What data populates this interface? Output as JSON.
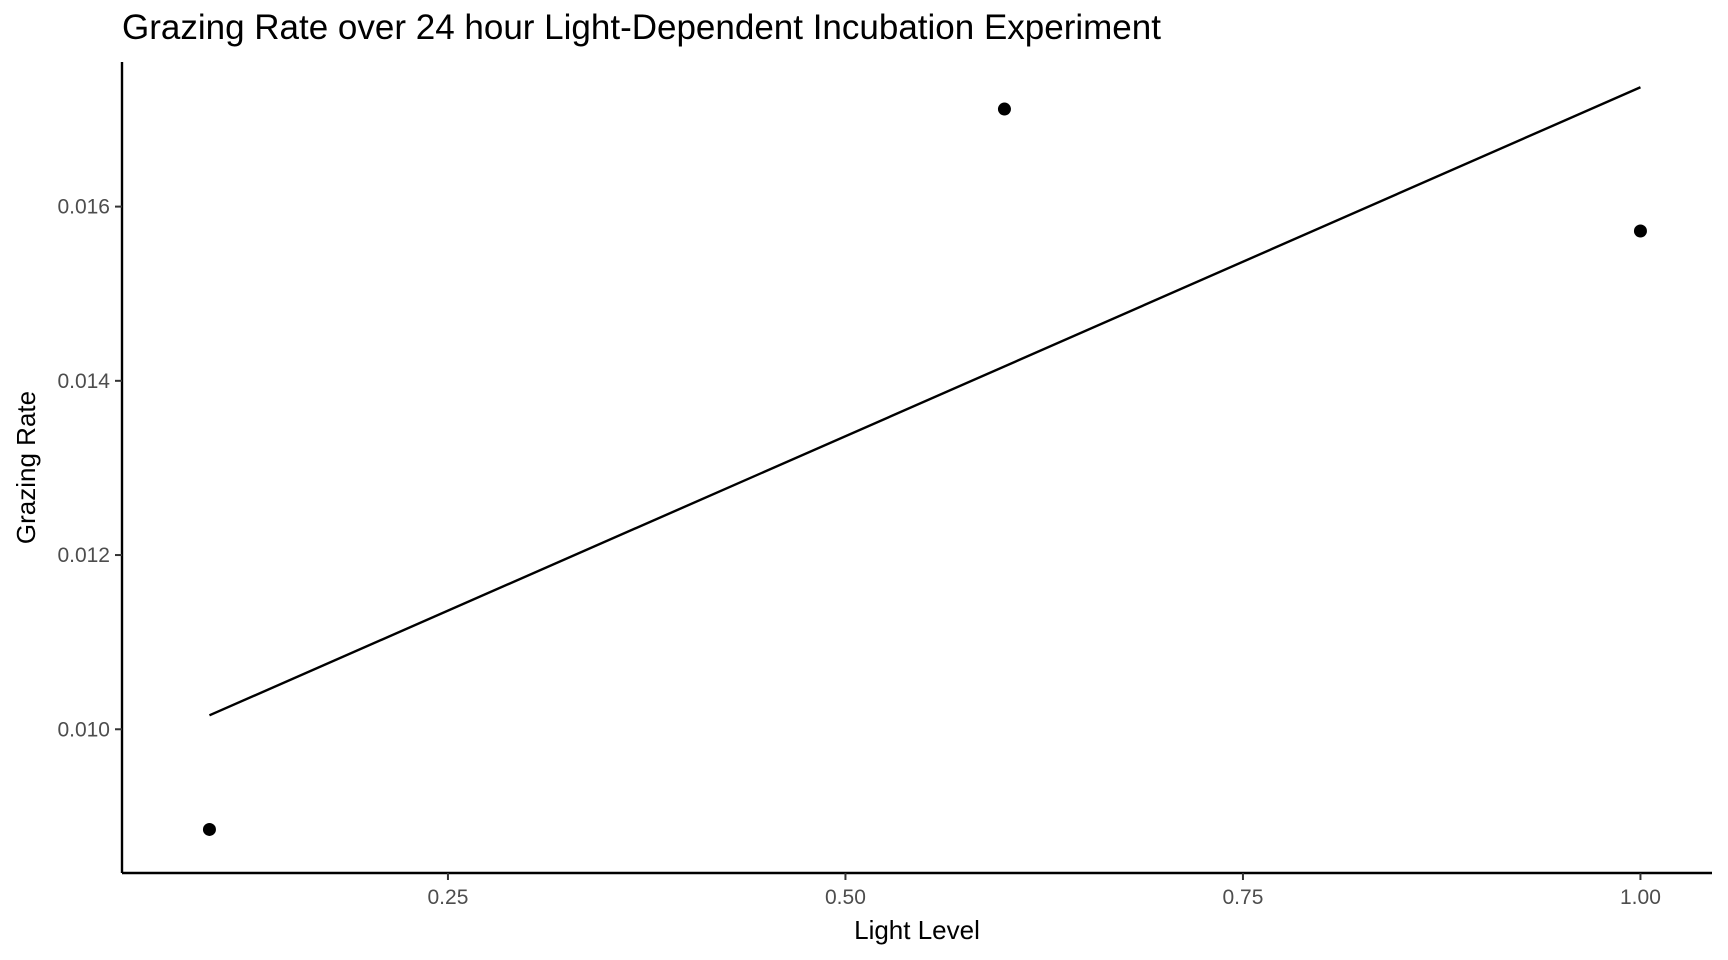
{
  "chart_data": {
    "type": "scatter",
    "title": "Grazing Rate over 24 hour Light-Dependent Incubation Experiment",
    "xlabel": "Light Level",
    "ylabel": "Grazing Rate",
    "xlim": [
      0.045,
      1.045
    ],
    "ylim": [
      0.00835,
      0.01766
    ],
    "x_ticks": [
      0.25,
      0.5,
      0.75,
      1.0
    ],
    "x_tick_labels": [
      "0.25",
      "0.50",
      "0.75",
      "1.00"
    ],
    "y_ticks": [
      0.01,
      0.012,
      0.014,
      0.016
    ],
    "y_tick_labels": [
      "0.010",
      "0.012",
      "0.014",
      "0.016"
    ],
    "grid": false,
    "legend": "none",
    "points": {
      "x": [
        0.1,
        0.6,
        1.0
      ],
      "y": [
        0.00885,
        0.01712,
        0.01572
      ]
    },
    "fit_line": {
      "x": [
        0.1,
        1.0
      ],
      "y": [
        0.01016,
        0.01737
      ]
    },
    "colors": {
      "points": "#000000",
      "line": "#000000",
      "axis": "#000000"
    }
  }
}
